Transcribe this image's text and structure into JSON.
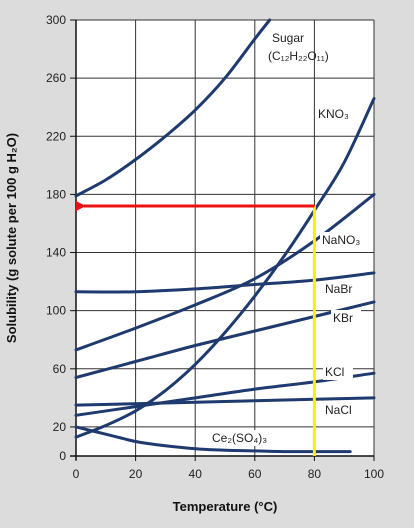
{
  "chart_data": {
    "type": "line",
    "title": "",
    "xlabel": "Temperature (°C)",
    "ylabel": "Solubility (g solute per 100 g H₂O)",
    "xlim": [
      0,
      100
    ],
    "ylim": [
      0,
      300
    ],
    "x_ticks": [
      0,
      20,
      40,
      60,
      80,
      100
    ],
    "y_ticks": [
      0,
      20,
      60,
      100,
      140,
      180,
      220,
      260,
      300
    ],
    "grid": true,
    "series": [
      {
        "name": "Sugar",
        "name_sub": "(C₁₂H₂₂O₁₁)",
        "color": "#1f3a6e",
        "x": [
          0,
          10,
          20,
          30,
          40,
          50,
          60,
          65
        ],
        "y": [
          179,
          190,
          204,
          220,
          238,
          260,
          287,
          300
        ]
      },
      {
        "name": "KNO₃",
        "color": "#1f3a6e",
        "x": [
          0,
          10,
          20,
          30,
          40,
          50,
          60,
          70,
          80,
          90,
          100
        ],
        "y": [
          13,
          21,
          31,
          45,
          63,
          85,
          110,
          138,
          169,
          202,
          246
        ]
      },
      {
        "name": "NaNO₃",
        "color": "#1f3a6e",
        "x": [
          0,
          20,
          40,
          60,
          80,
          100
        ],
        "y": [
          73,
          88,
          104,
          122,
          148,
          180
        ]
      },
      {
        "name": "NaBr",
        "color": "#1f3a6e",
        "x": [
          0,
          20,
          40,
          60,
          80,
          100
        ],
        "y": [
          113,
          113,
          115,
          118,
          121,
          126
        ]
      },
      {
        "name": "KBr",
        "color": "#1f3a6e",
        "x": [
          0,
          20,
          40,
          60,
          80,
          100
        ],
        "y": [
          54,
          65,
          76,
          86,
          96,
          106
        ]
      },
      {
        "name": "KCl",
        "color": "#1f3a6e",
        "x": [
          0,
          20,
          40,
          60,
          80,
          100
        ],
        "y": [
          28,
          34,
          40,
          46,
          51,
          57
        ]
      },
      {
        "name": "NaCl",
        "color": "#1f3a6e",
        "x": [
          0,
          20,
          40,
          60,
          80,
          100
        ],
        "y": [
          35,
          36,
          37,
          38,
          39,
          40
        ]
      },
      {
        "name": "Ce₂(SO₄)₃",
        "color": "#1f3a6e",
        "x": [
          0,
          10,
          20,
          30,
          40,
          50,
          60,
          70,
          80,
          92
        ],
        "y": [
          20,
          15,
          10,
          7,
          5,
          4,
          3.5,
          3,
          3,
          3
        ]
      }
    ],
    "annotations": [
      {
        "type": "vertical-line",
        "color": "#f2f20a",
        "x": 80,
        "y_from": 0,
        "y_to": 172
      },
      {
        "type": "arrow",
        "color": "#ee1010",
        "from": [
          80,
          172
        ],
        "to": [
          0,
          172
        ]
      }
    ]
  }
}
